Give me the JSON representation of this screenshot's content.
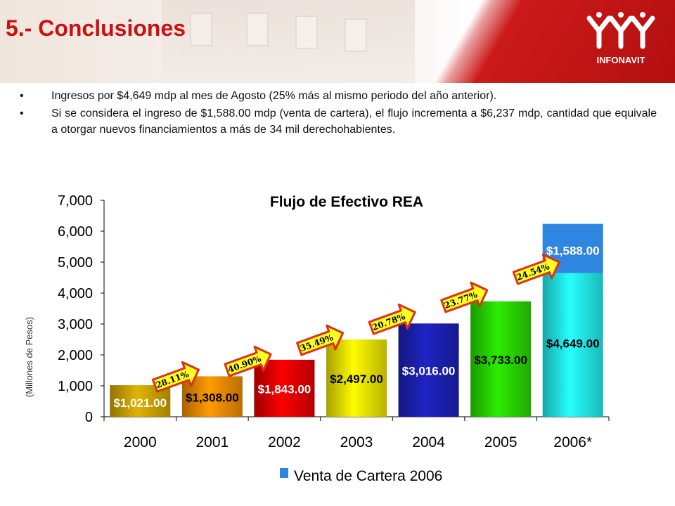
{
  "slide": {
    "title": "5.- Conclusiones",
    "logo_text": "INFONAVIT",
    "bullet_symbol": "•",
    "bullets": [
      "Ingresos por $4,649 mdp al mes de Agosto  (25% más al mismo periodo del año anterior).",
      "Si se considera el ingreso de $1,588.00 mdp (venta de cartera), el flujo incrementa a $6,237 mdp, cantidad que equivale a otorgar nuevos financiamientos a más de 34 mil derechohabientes."
    ]
  },
  "chart_data": {
    "type": "bar",
    "title": "Flujo de Efectivo REA",
    "ylabel": "(Millones de Pesos)",
    "xlabel": "",
    "ylim": [
      0,
      7000
    ],
    "yticks": [
      0,
      1000,
      2000,
      3000,
      4000,
      5000,
      6000,
      7000
    ],
    "ytick_labels": [
      "0",
      "1,000",
      "2,000",
      "3,000",
      "4,000",
      "5,000",
      "6,000",
      "7,000"
    ],
    "categories": [
      "2000",
      "2001",
      "2002",
      "2003",
      "2004",
      "2005",
      "2006*"
    ],
    "values": [
      1021,
      1308,
      1843,
      2497,
      3016,
      3733,
      4649
    ],
    "value_labels": [
      "$1,021.00",
      "$1,308.00",
      "$1,843.00",
      "$2,497.00",
      "$3,016.00",
      "$3,733.00",
      "$4,649.00"
    ],
    "bar_colors": [
      "#c9a000",
      "#e88a00",
      "#e00000",
      "#e6e000",
      "#1c20b0",
      "#26d400",
      "#22e6e6"
    ],
    "label_colors": [
      "#ffffff",
      "#000000",
      "#ffffff",
      "#000000",
      "#ffffff",
      "#000000",
      "#000000"
    ],
    "stacked_extra": {
      "category": "2006*",
      "value": 1588,
      "label": "$1,588.00",
      "color": "#2f86e0",
      "label_color": "#ffffff"
    },
    "growth_labels": [
      "28.11%",
      "40.90%",
      "35.49%",
      "20.78%",
      "23.77%",
      "24.54%"
    ],
    "arrow_colors": {
      "fill": "#ffff22",
      "stroke": "#e0301a"
    },
    "legend": {
      "entries": [
        "Venta de Cartera 2006"
      ],
      "color": "#2f86e0",
      "position": "bottom"
    },
    "grid": false
  }
}
